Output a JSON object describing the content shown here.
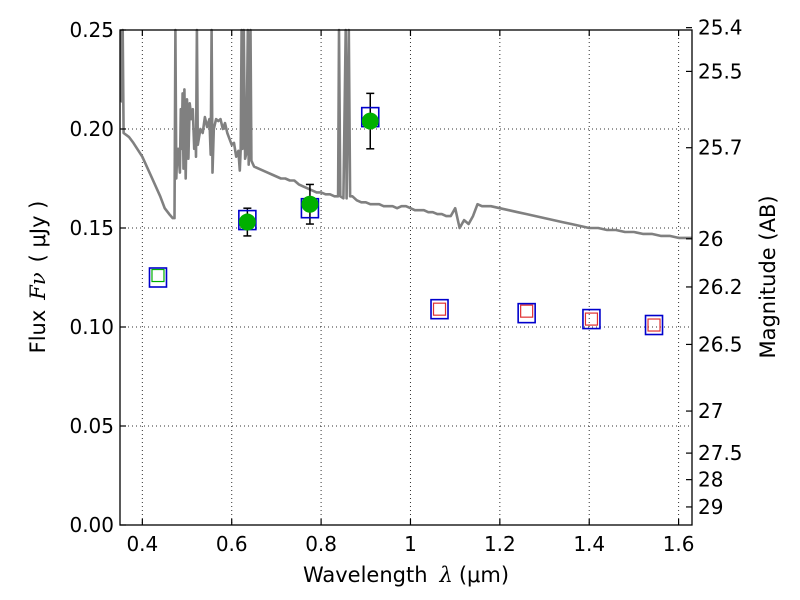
{
  "chart_data": {
    "type": "scatter",
    "title": "",
    "xlabel_text": "Wavelength",
    "xlabel_symbol": "λ",
    "xlabel_unit": "(μm)",
    "ylabel_text": "Flux",
    "ylabel_symbol": "Fν",
    "ylabel_unit": "( μJy )",
    "y2label": "Magnitude (AB)",
    "xlim": [
      0.35,
      1.63
    ],
    "ylim": [
      0.0,
      0.25
    ],
    "grid": true,
    "x_ticks": [
      {
        "value": 0.4,
        "label": "0.4"
      },
      {
        "value": 0.6,
        "label": "0.6"
      },
      {
        "value": 0.8,
        "label": "0.8"
      },
      {
        "value": 1.0,
        "label": "1"
      },
      {
        "value": 1.2,
        "label": "1.2"
      },
      {
        "value": 1.4,
        "label": "1.4"
      },
      {
        "value": 1.6,
        "label": "1.6"
      }
    ],
    "y_ticks": [
      {
        "value": 0.0,
        "label": "0.00"
      },
      {
        "value": 0.05,
        "label": "0.05"
      },
      {
        "value": 0.1,
        "label": "0.10"
      },
      {
        "value": 0.15,
        "label": "0.15"
      },
      {
        "value": 0.2,
        "label": "0.20"
      },
      {
        "value": 0.25,
        "label": "0.25"
      }
    ],
    "y2_ticks": [
      {
        "mag": 25.4,
        "label": "25.4"
      },
      {
        "mag": 25.5,
        "label": "25.5"
      },
      {
        "mag": 25.7,
        "label": "25.7"
      },
      {
        "mag": 26,
        "label": "26"
      },
      {
        "mag": 26.2,
        "label": "26.2"
      },
      {
        "mag": 26.5,
        "label": "26.5"
      },
      {
        "mag": 27,
        "label": "27"
      },
      {
        "mag": 27.5,
        "label": "27.5"
      },
      {
        "mag": 28,
        "label": "28"
      },
      {
        "mag": 29,
        "label": "29"
      }
    ],
    "sed_model": {
      "color": "#808080",
      "points": [
        [
          0.352,
          0.25
        ],
        [
          0.354,
          0.214
        ],
        [
          0.356,
          0.25
        ],
        [
          0.358,
          0.198
        ],
        [
          0.37,
          0.196
        ],
        [
          0.38,
          0.193
        ],
        [
          0.4,
          0.186
        ],
        [
          0.42,
          0.176
        ],
        [
          0.44,
          0.166
        ],
        [
          0.45,
          0.16
        ],
        [
          0.46,
          0.157
        ],
        [
          0.468,
          0.155
        ],
        [
          0.472,
          0.155
        ],
        [
          0.474,
          0.25
        ],
        [
          0.476,
          0.175
        ],
        [
          0.478,
          0.188
        ],
        [
          0.48,
          0.19
        ],
        [
          0.484,
          0.178
        ],
        [
          0.486,
          0.21
        ],
        [
          0.488,
          0.19
        ],
        [
          0.49,
          0.218
        ],
        [
          0.492,
          0.18
        ],
        [
          0.494,
          0.22
        ],
        [
          0.497,
          0.175
        ],
        [
          0.5,
          0.215
        ],
        [
          0.503,
          0.185
        ],
        [
          0.506,
          0.213
        ],
        [
          0.51,
          0.205
        ],
        [
          0.513,
          0.21
        ],
        [
          0.516,
          0.19
        ],
        [
          0.519,
          0.2
        ],
        [
          0.52,
          0.186
        ],
        [
          0.522,
          0.25
        ],
        [
          0.524,
          0.192
        ],
        [
          0.53,
          0.2
        ],
        [
          0.535,
          0.198
        ],
        [
          0.54,
          0.206
        ],
        [
          0.545,
          0.201
        ],
        [
          0.55,
          0.205
        ],
        [
          0.553,
          0.187
        ],
        [
          0.555,
          0.25
        ],
        [
          0.557,
          0.178
        ],
        [
          0.56,
          0.2
        ],
        [
          0.565,
          0.205
        ],
        [
          0.57,
          0.204
        ],
        [
          0.575,
          0.205
        ],
        [
          0.58,
          0.2
        ],
        [
          0.585,
          0.203
        ],
        [
          0.59,
          0.198
        ],
        [
          0.595,
          0.195
        ],
        [
          0.6,
          0.192
        ],
        [
          0.605,
          0.193
        ],
        [
          0.61,
          0.186
        ],
        [
          0.615,
          0.189
        ],
        [
          0.618,
          0.179
        ],
        [
          0.62,
          0.19
        ],
        [
          0.622,
          0.25
        ],
        [
          0.624,
          0.19
        ],
        [
          0.627,
          0.25
        ],
        [
          0.63,
          0.185
        ],
        [
          0.633,
          0.188
        ],
        [
          0.636,
          0.25
        ],
        [
          0.638,
          0.182
        ],
        [
          0.642,
          0.25
        ],
        [
          0.644,
          0.184
        ],
        [
          0.65,
          0.181
        ],
        [
          0.66,
          0.18
        ],
        [
          0.67,
          0.179
        ],
        [
          0.68,
          0.178
        ],
        [
          0.69,
          0.177
        ],
        [
          0.7,
          0.176
        ],
        [
          0.71,
          0.175
        ],
        [
          0.72,
          0.175
        ],
        [
          0.73,
          0.174
        ],
        [
          0.74,
          0.174
        ],
        [
          0.75,
          0.172
        ],
        [
          0.76,
          0.171
        ],
        [
          0.77,
          0.17
        ],
        [
          0.78,
          0.169
        ],
        [
          0.79,
          0.168
        ],
        [
          0.8,
          0.168
        ],
        [
          0.81,
          0.167
        ],
        [
          0.82,
          0.167
        ],
        [
          0.83,
          0.166
        ],
        [
          0.838,
          0.166
        ],
        [
          0.84,
          0.25
        ],
        [
          0.843,
          0.166
        ],
        [
          0.85,
          0.165
        ],
        [
          0.855,
          0.25
        ],
        [
          0.857,
          0.165
        ],
        [
          0.862,
          0.25
        ],
        [
          0.865,
          0.166
        ],
        [
          0.87,
          0.166
        ],
        [
          0.88,
          0.164
        ],
        [
          0.89,
          0.163
        ],
        [
          0.9,
          0.163
        ],
        [
          0.91,
          0.162
        ],
        [
          0.92,
          0.162
        ],
        [
          0.93,
          0.162
        ],
        [
          0.94,
          0.161
        ],
        [
          0.95,
          0.161
        ],
        [
          0.96,
          0.161
        ],
        [
          0.97,
          0.16
        ],
        [
          0.98,
          0.161
        ],
        [
          0.99,
          0.161
        ],
        [
          1.0,
          0.16
        ],
        [
          1.01,
          0.159
        ],
        [
          1.02,
          0.159
        ],
        [
          1.03,
          0.159
        ],
        [
          1.04,
          0.158
        ],
        [
          1.05,
          0.158
        ],
        [
          1.06,
          0.157
        ],
        [
          1.07,
          0.157
        ],
        [
          1.08,
          0.156
        ],
        [
          1.09,
          0.156
        ],
        [
          1.1,
          0.16
        ],
        [
          1.11,
          0.15
        ],
        [
          1.12,
          0.154
        ],
        [
          1.13,
          0.152
        ],
        [
          1.14,
          0.156
        ],
        [
          1.15,
          0.162
        ],
        [
          1.16,
          0.161
        ],
        [
          1.18,
          0.161
        ],
        [
          1.2,
          0.16
        ],
        [
          1.22,
          0.159
        ],
        [
          1.24,
          0.158
        ],
        [
          1.26,
          0.157
        ],
        [
          1.28,
          0.156
        ],
        [
          1.3,
          0.155
        ],
        [
          1.32,
          0.154
        ],
        [
          1.34,
          0.153
        ],
        [
          1.36,
          0.152
        ],
        [
          1.38,
          0.151
        ],
        [
          1.4,
          0.15
        ],
        [
          1.42,
          0.15
        ],
        [
          1.44,
          0.149
        ],
        [
          1.46,
          0.149
        ],
        [
          1.48,
          0.148
        ],
        [
          1.5,
          0.148
        ],
        [
          1.52,
          0.147
        ],
        [
          1.54,
          0.147
        ],
        [
          1.56,
          0.146
        ],
        [
          1.58,
          0.146
        ],
        [
          1.6,
          0.145
        ],
        [
          1.63,
          0.145
        ]
      ]
    },
    "observed": {
      "color": "#00b000",
      "points": [
        {
          "x": 0.635,
          "y": 0.153,
          "err": 0.007
        },
        {
          "x": 0.775,
          "y": 0.162,
          "err": 0.01
        },
        {
          "x": 0.91,
          "y": 0.204,
          "err": 0.014
        }
      ]
    },
    "model_photometry": {
      "edge_color": "#0000cc",
      "points": [
        {
          "x": 0.435,
          "y": 0.125
        },
        {
          "x": 0.635,
          "y": 0.154
        },
        {
          "x": 0.775,
          "y": 0.16
        },
        {
          "x": 0.91,
          "y": 0.206
        },
        {
          "x": 1.065,
          "y": 0.109
        },
        {
          "x": 1.26,
          "y": 0.107
        },
        {
          "x": 1.405,
          "y": 0.104
        },
        {
          "x": 1.545,
          "y": 0.101
        }
      ]
    },
    "inner_markers": {
      "green_edge": "#00b000",
      "red_edge": "#e03030",
      "points": [
        {
          "x": 0.435,
          "y": 0.126,
          "color": "green"
        },
        {
          "x": 1.065,
          "y": 0.109,
          "color": "red"
        },
        {
          "x": 1.26,
          "y": 0.108,
          "color": "red"
        },
        {
          "x": 1.405,
          "y": 0.104,
          "color": "red"
        },
        {
          "x": 1.545,
          "y": 0.101,
          "color": "red"
        }
      ]
    }
  }
}
